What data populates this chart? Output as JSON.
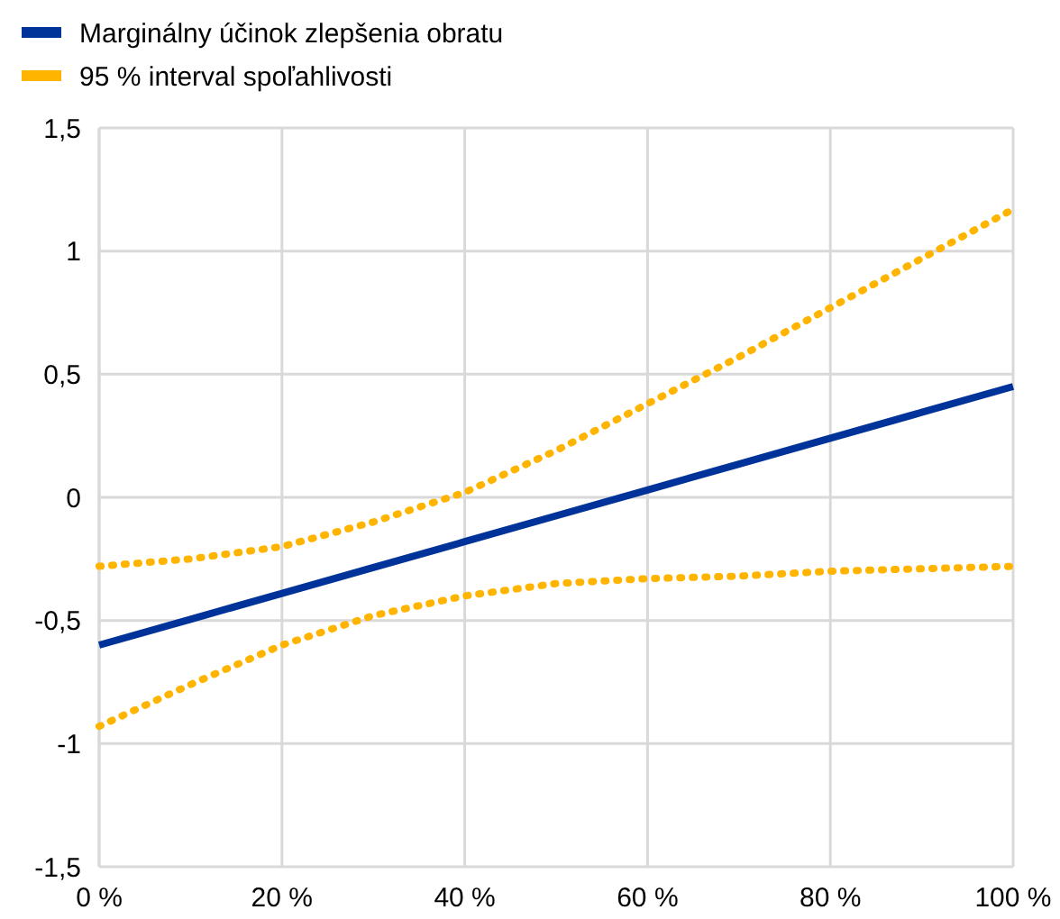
{
  "chart_data": {
    "type": "line",
    "x": [
      0,
      10,
      20,
      30,
      40,
      50,
      60,
      70,
      80,
      90,
      100
    ],
    "series": [
      {
        "name": "Marginálny účinok zlepšenia obratu",
        "color": "#003399",
        "line_style": "solid",
        "values": [
          -0.6,
          -0.495,
          -0.39,
          -0.285,
          -0.18,
          -0.075,
          0.03,
          0.135,
          0.24,
          0.345,
          0.45
        ]
      },
      {
        "name": "95 % interval spoľahlivosti",
        "color": "#ffb400",
        "line_style": "dotted",
        "values": [
          -0.28,
          -0.25,
          -0.2,
          -0.1,
          0.02,
          0.19,
          0.38,
          0.57,
          0.77,
          0.97,
          1.17
        ]
      },
      {
        "color": "#ffb400",
        "line_style": "dotted",
        "values": [
          -0.93,
          -0.76,
          -0.6,
          -0.48,
          -0.4,
          -0.35,
          -0.33,
          -0.32,
          -0.3,
          -0.29,
          -0.28
        ]
      }
    ],
    "xlim": [
      0,
      100
    ],
    "xticks": [
      {
        "value": 0,
        "label": "0 %"
      },
      {
        "value": 20,
        "label": "20 %"
      },
      {
        "value": 40,
        "label": "40 %"
      },
      {
        "value": 60,
        "label": "60 %"
      },
      {
        "value": 80,
        "label": "80 %"
      },
      {
        "value": 100,
        "label": "100 %"
      }
    ],
    "ylim": [
      -1.5,
      1.5
    ],
    "yticks": [
      {
        "value": -1.5,
        "label": "-1,5"
      },
      {
        "value": -1,
        "label": "-1"
      },
      {
        "value": -0.5,
        "label": "-0,5"
      },
      {
        "value": 0,
        "label": "0"
      },
      {
        "value": 0.5,
        "label": "0,5"
      },
      {
        "value": 1,
        "label": "1"
      },
      {
        "value": 1.5,
        "label": "1,5"
      }
    ],
    "grid": true,
    "legend": "top left",
    "marker": "none"
  }
}
